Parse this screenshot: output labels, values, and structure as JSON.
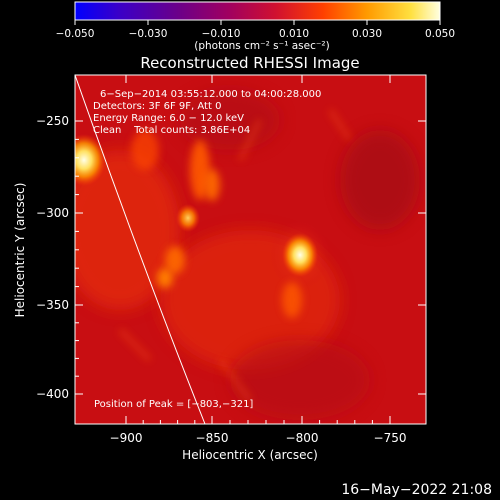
{
  "colorbar": {
    "tick_labels": [
      "−0.050",
      "−0.030",
      "−0.010",
      "0.010",
      "0.030",
      "0.050"
    ],
    "units_label": "(photons cm⁻² s⁻¹ asec⁻²)",
    "colors": [
      "#0000ff",
      "#3a00c8",
      "#6a008a",
      "#a00060",
      "#d01030",
      "#ff4000",
      "#ff9a00",
      "#ffe040",
      "#ffffe0"
    ]
  },
  "image": {
    "title": "Reconstructed RHESSI Image",
    "info_lines": [
      "6−Sep−2014 03:55:12.000 to 04:00:28.000",
      "Detectors: 3F 6F 9F, Att 0",
      "Energy Range: 6.0 − 12.0 keV",
      "Clean    Total counts: 3.86E+04"
    ],
    "peak_label": "Position of Peak = [−803,−321]",
    "xlabel": "Heliocentric X (arcsec)",
    "ylabel": "Heliocentric Y (arcsec)",
    "x_ticks": [
      "−900",
      "−850",
      "−800",
      "−750"
    ],
    "y_ticks": [
      "−250",
      "−300",
      "−350",
      "−400"
    ],
    "timestamp": "16−May−2022 21:08"
  }
}
